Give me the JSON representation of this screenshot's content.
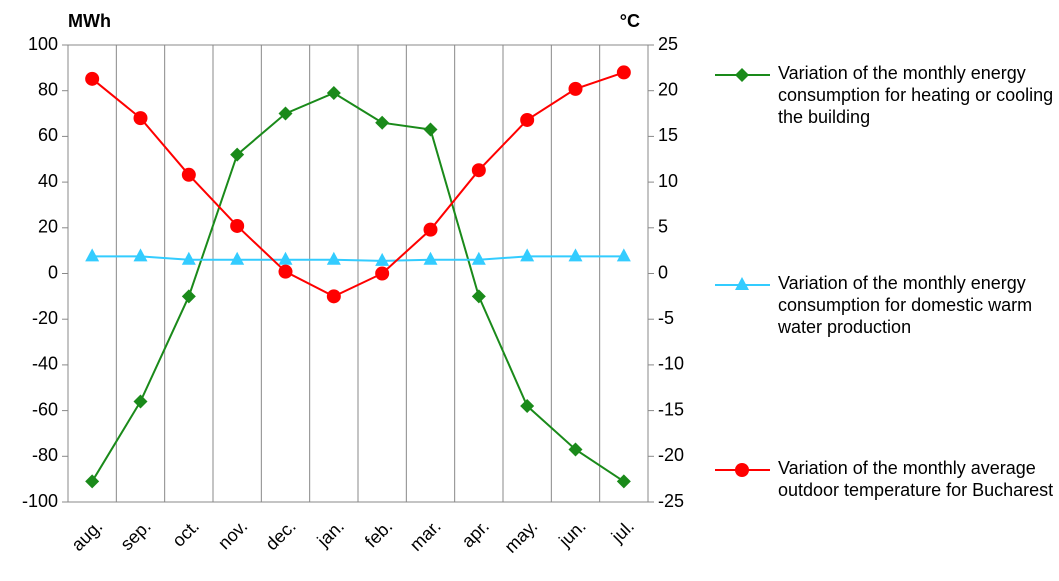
{
  "chart_data": {
    "type": "line",
    "y_label": "MWh",
    "y2_label": "°C",
    "categories": [
      "aug.",
      "sep.",
      "oct.",
      "nov.",
      "dec.",
      "jan.",
      "feb.",
      "mar.",
      "apr.",
      "may.",
      "jun.",
      "jul."
    ],
    "series": [
      {
        "name": "Variation of the monthly energy consumption for heating or cooling the building",
        "color": "#1a8a1a",
        "marker": "diamond",
        "values": [
          -91,
          -56,
          -10,
          52,
          70,
          79,
          66,
          63,
          -10,
          -58,
          -77,
          -91
        ]
      },
      {
        "name": "Variation of the monthly energy consumption for domestic warm water production",
        "color": "#33ccff",
        "marker": "triangle",
        "values": [
          7.5,
          7.5,
          6,
          6,
          6,
          6,
          5.5,
          6,
          6,
          7.5,
          7.5,
          7.5
        ]
      },
      {
        "name": "Variation of the monthly average outdoor temperature for Bucharest",
        "color": "#ff0000",
        "marker": "circle",
        "axis": "y2",
        "values": [
          21.3,
          17,
          10.8,
          5.2,
          0.2,
          -2.5,
          0,
          4.8,
          11.3,
          16.8,
          20.2,
          22
        ]
      }
    ],
    "ylim": [
      -100,
      100
    ],
    "yticks": [
      -100,
      -80,
      -60,
      -40,
      -20,
      0,
      20,
      40,
      60,
      80,
      100
    ],
    "y2lim": [
      -25,
      25
    ],
    "y2ticks": [
      -25,
      -20,
      -15,
      -10,
      -5,
      0,
      5,
      10,
      15,
      20,
      25
    ],
    "legend": "right"
  }
}
